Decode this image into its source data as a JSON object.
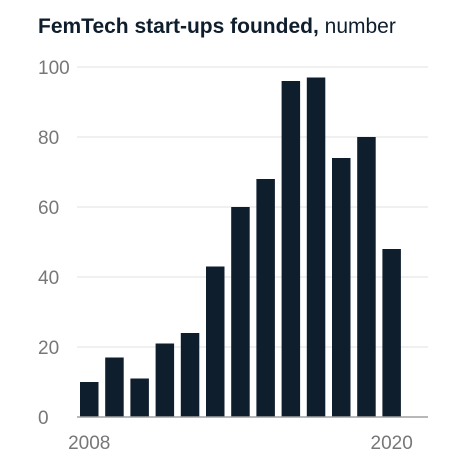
{
  "chart_data": {
    "type": "bar",
    "title": "FemTech start-ups founded,",
    "unit": "number",
    "x_tick_labels": [
      "2008",
      "2020"
    ],
    "categories": [
      "2008",
      "2009",
      "2010",
      "2011",
      "2012",
      "2013",
      "2014",
      "2015",
      "2016",
      "2017",
      "2018",
      "2019",
      "2020"
    ],
    "values": [
      10,
      17,
      11,
      21,
      24,
      43,
      60,
      68,
      96,
      97,
      74,
      80,
      48
    ],
    "ylim": [
      0,
      100
    ],
    "yticks": [
      0,
      20,
      40,
      60,
      80,
      100
    ],
    "grid": true,
    "colors": {
      "bar": "#0f1e2d",
      "grid": "#e2e2e2",
      "axis": "#a0a0a0",
      "tick_text": "#777777",
      "title": "#0f1e2d"
    }
  }
}
